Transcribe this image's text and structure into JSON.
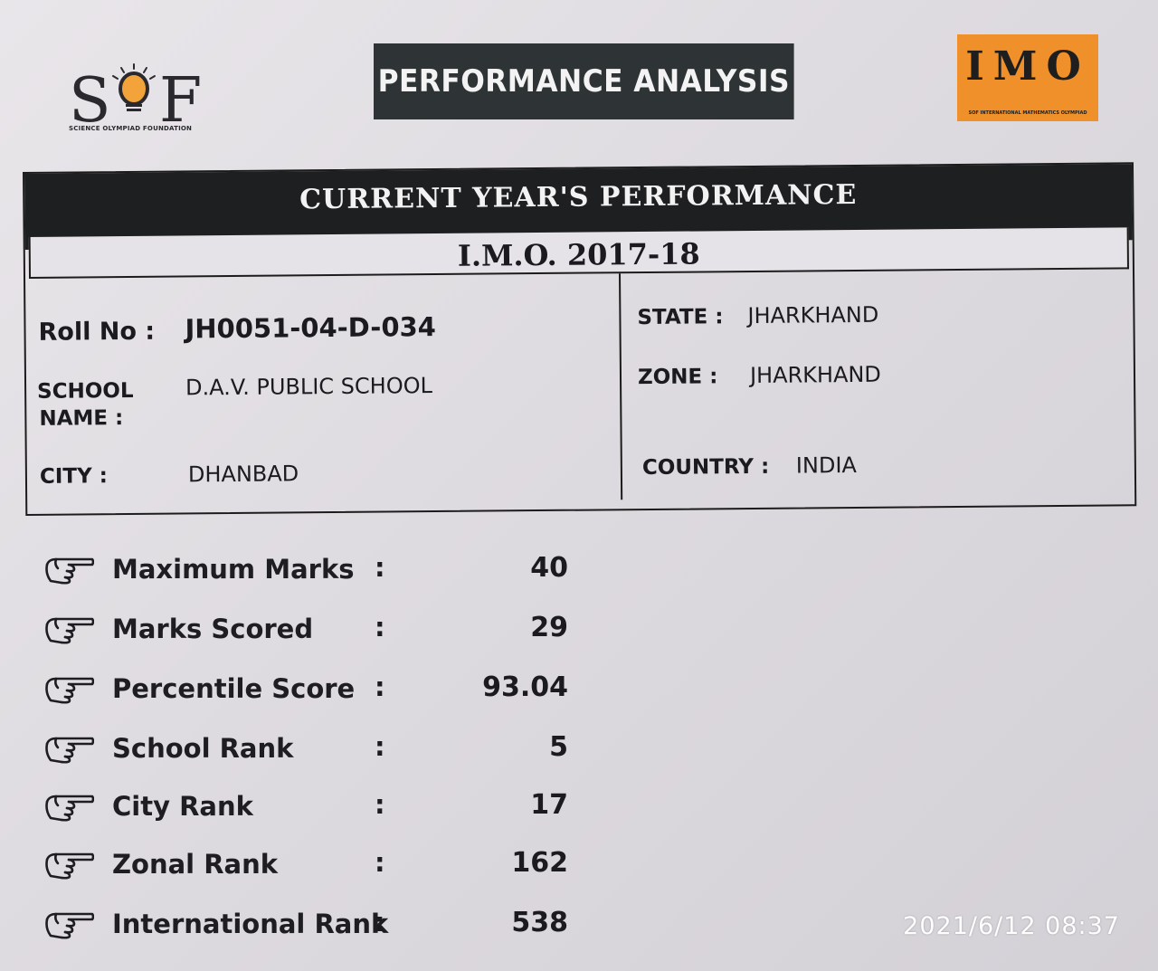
{
  "logos": {
    "sof": {
      "letters_left": "S",
      "letters_right": "F",
      "subtitle": "SCIENCE OLYMPIAD FOUNDATION",
      "accent": "#f2a43a"
    },
    "imo": {
      "text": "IMO",
      "subtitle": "SOF INTERNATIONAL MATHEMATICS OLYMPIAD",
      "background": "#f0902a"
    }
  },
  "banner": {
    "title": "PERFORMANCE ANALYSIS"
  },
  "performance": {
    "heading": "CURRENT YEAR'S PERFORMANCE",
    "exam": "I.M.O. 2017-18",
    "left": {
      "roll_label": "Roll No :",
      "roll_value": "JH0051-04-D-034",
      "school_label_1": "SCHOOL",
      "school_label_2": "NAME :",
      "school_value": "D.A.V. PUBLIC SCHOOL",
      "city_label": "CITY :",
      "city_value": "DHANBAD"
    },
    "right": {
      "state_label": "STATE :",
      "state_value": "JHARKHAND",
      "zone_label": "ZONE :",
      "zone_value": "JHARKHAND",
      "country_label": "COUNTRY :",
      "country_value": "INDIA"
    }
  },
  "stats": [
    {
      "label": "Maximum Marks",
      "value": "40"
    },
    {
      "label": "Marks Scored",
      "value": "29"
    },
    {
      "label": "Percentile Score",
      "value": "93.04"
    },
    {
      "label": "School Rank",
      "value": "5"
    },
    {
      "label": "City Rank",
      "value": "17"
    },
    {
      "label": "Zonal Rank",
      "value": "162"
    },
    {
      "label": "International Rank",
      "value": "538"
    }
  ],
  "stat_colon": ":",
  "stat_icon": "pointing-hand-icon",
  "timestamp": "2021/6/12 08:37"
}
